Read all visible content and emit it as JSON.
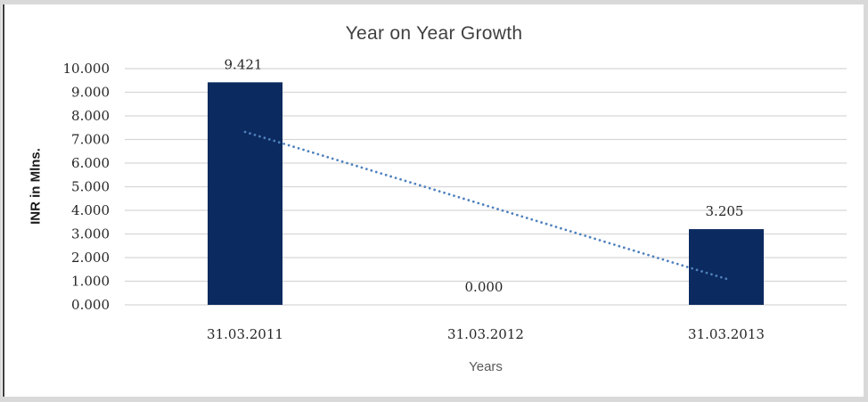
{
  "chart_data": {
    "type": "bar",
    "title": "Year on Year Growth",
    "xlabel": "Years",
    "ylabel": "INR in Mlns.",
    "categories": [
      "31.03.2011",
      "31.03.2012",
      "31.03.2013"
    ],
    "values": [
      9.421,
      0.0,
      3.205
    ],
    "data_labels": [
      "9.421",
      "0.000",
      "3.205"
    ],
    "ylim": [
      0,
      10
    ],
    "ytick_step": 1,
    "ytick_labels": [
      "0.000",
      "1.000",
      "2.000",
      "3.000",
      "4.000",
      "5.000",
      "6.000",
      "7.000",
      "8.000",
      "9.000",
      "10.000"
    ],
    "grid": true,
    "legend_position": "none",
    "bar_color": "#0b2a5f",
    "grid_color": "#d6d6d6",
    "title_color": "#404040",
    "axis_title_color": "#595959",
    "tick_label_color": "#262626",
    "trendline": {
      "kind": "linear",
      "style": "dotted",
      "color": "#4e81bd",
      "start_value": 7.32,
      "end_value": 1.1,
      "start_category_index": 0,
      "end_category_index": 2
    }
  }
}
